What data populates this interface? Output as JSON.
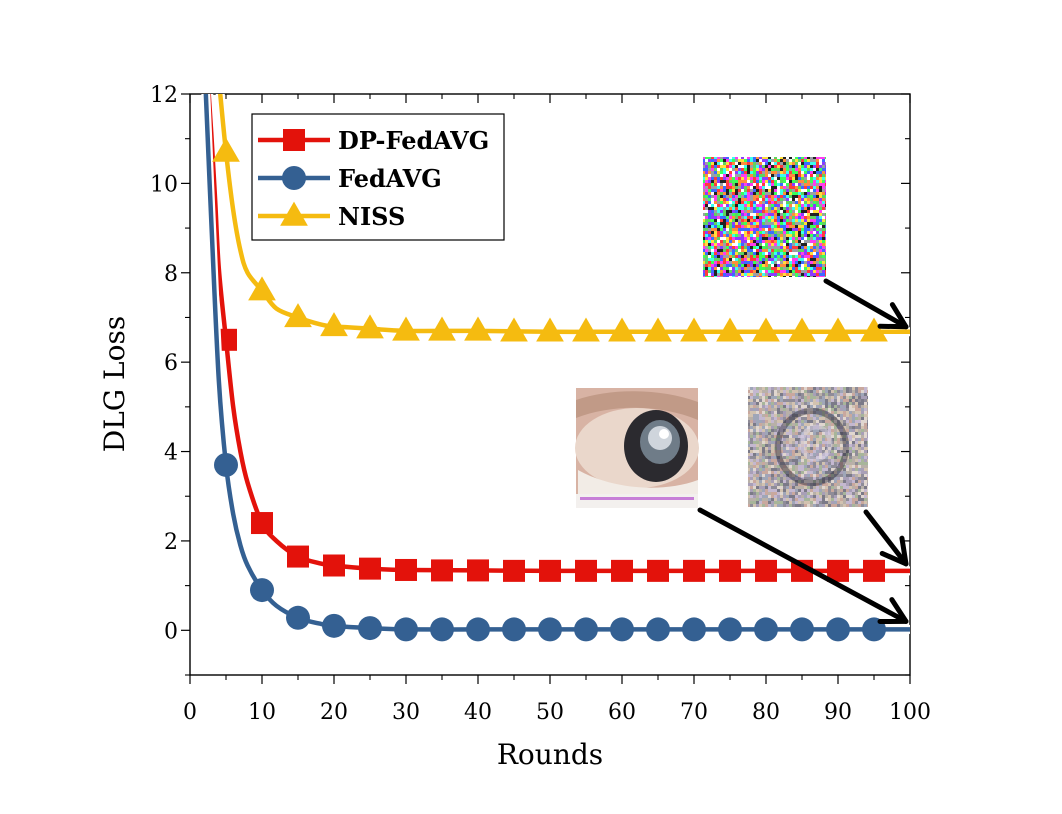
{
  "chart_data": {
    "type": "line",
    "xlabel": "Rounds",
    "ylabel": "DLG Loss",
    "xlim": [
      0,
      100
    ],
    "ylim": [
      -1,
      12
    ],
    "x_ticks": [
      0,
      10,
      20,
      30,
      40,
      50,
      60,
      70,
      80,
      90,
      100
    ],
    "y_ticks": [
      0,
      2,
      4,
      6,
      8,
      10,
      12
    ],
    "grid": false,
    "legend_position": "top-left",
    "marker_x": [
      5,
      10,
      15,
      20,
      25,
      30,
      35,
      40,
      45,
      50,
      55,
      60,
      65,
      70,
      75,
      80,
      85,
      90,
      95
    ],
    "series": [
      {
        "name": "DP-FedAVG",
        "color": "#e3120b",
        "marker": "square",
        "curve_x": [
          2.6,
          3,
          3.5,
          4,
          5,
          6,
          7,
          8,
          10,
          12,
          15,
          18,
          20,
          25,
          30,
          40,
          50,
          60,
          70,
          80,
          90,
          100
        ],
        "curve_y": [
          12,
          11,
          9.6,
          8.1,
          6.5,
          5.0,
          4.0,
          3.3,
          2.4,
          2.0,
          1.65,
          1.5,
          1.45,
          1.38,
          1.35,
          1.34,
          1.33,
          1.33,
          1.33,
          1.33,
          1.33,
          1.33
        ],
        "values": [
          6.5,
          2.4,
          1.65,
          1.45,
          1.38,
          1.35,
          1.34,
          1.34,
          1.33,
          1.33,
          1.33,
          1.33,
          1.33,
          1.33,
          1.33,
          1.33,
          1.33,
          1.33,
          1.33
        ]
      },
      {
        "name": "FedAVG",
        "color": "#346092",
        "marker": "circle",
        "curve_x": [
          2.2,
          3,
          4,
          5,
          6,
          7,
          8,
          10,
          12,
          15,
          18,
          20,
          25,
          30,
          40,
          50,
          60,
          70,
          80,
          90,
          100
        ],
        "curve_y": [
          12,
          9.0,
          5.6,
          3.7,
          2.6,
          1.9,
          1.45,
          0.9,
          0.55,
          0.28,
          0.15,
          0.1,
          0.05,
          0.02,
          0.02,
          0.02,
          0.02,
          0.02,
          0.02,
          0.02,
          0.02
        ],
        "values": [
          3.7,
          0.9,
          0.28,
          0.1,
          0.05,
          0.02,
          0.02,
          0.02,
          0.02,
          0.02,
          0.02,
          0.02,
          0.02,
          0.02,
          0.02,
          0.02,
          0.02,
          0.02,
          0.02
        ]
      },
      {
        "name": "NISS",
        "color": "#f5bb10",
        "marker": "triangle",
        "curve_x": [
          4.2,
          5,
          6,
          7,
          8,
          10,
          12,
          15,
          18,
          20,
          25,
          30,
          40,
          50,
          60,
          70,
          80,
          90,
          100
        ],
        "curve_y": [
          12,
          10.7,
          9.4,
          8.5,
          8.0,
          7.6,
          7.2,
          7.0,
          6.85,
          6.8,
          6.75,
          6.7,
          6.7,
          6.68,
          6.68,
          6.68,
          6.68,
          6.68,
          6.68
        ],
        "values": [
          10.7,
          7.6,
          7.0,
          6.8,
          6.75,
          6.7,
          6.7,
          6.7,
          6.68,
          6.68,
          6.68,
          6.68,
          6.68,
          6.68,
          6.68,
          6.68,
          6.68,
          6.68,
          6.68
        ]
      }
    ],
    "annotations": [
      {
        "name": "niss-noise-image",
        "content": "noise-thumbnail",
        "pointer_end": [
          100,
          6.68
        ]
      },
      {
        "name": "fedavg-eye-image",
        "content": "reconstructed-eye-thumbnail",
        "pointer_end": [
          100,
          0.02
        ]
      },
      {
        "name": "dp-noise-image",
        "content": "noisy-eye-thumbnail",
        "pointer_end": [
          100,
          1.33
        ]
      }
    ]
  }
}
